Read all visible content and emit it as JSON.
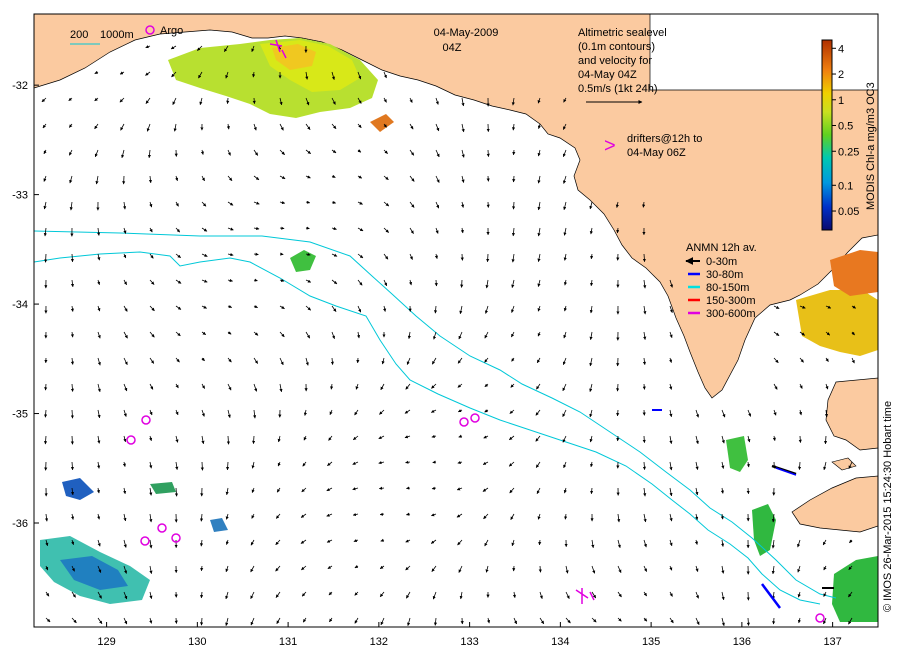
{
  "map": {
    "date_title": "04-May-2009",
    "time_title": "04Z",
    "longitude_ticks": [
      "129",
      "130",
      "131",
      "132",
      "133",
      "134",
      "135",
      "136",
      "137"
    ],
    "latitude_ticks": [
      "-32",
      "-33",
      "-34",
      "-35",
      "-36"
    ],
    "colors": {
      "land": "#fbcaa0",
      "ocean": "#ffffff",
      "isobath": "#00c8d8",
      "argo": "#e000e0",
      "drifter": "#e000e0",
      "arrow": "#000000"
    }
  },
  "scale_legend": {
    "isobath_200": "200",
    "isobath_1000": "1000m",
    "argo_label": "Argo"
  },
  "altimetry_note": {
    "lines": [
      "Altimetric sealevel",
      "(0.1m contours)",
      "and velocity for",
      "04-May 04Z",
      "0.5m/s (1kt 24h)"
    ]
  },
  "drifters_note": {
    "symbol": ">",
    "lines": [
      "drifters@12h to",
      "04-May 06Z"
    ]
  },
  "anmn_legend": {
    "title": "ANMN 12h av.",
    "items": [
      {
        "label": "0-30m",
        "color": "#000000"
      },
      {
        "label": "30-80m",
        "color": "#0000ff"
      },
      {
        "label": "80-150m",
        "color": "#00e0e0"
      },
      {
        "label": "150-300m",
        "color": "#ff0000"
      },
      {
        "label": "300-600m",
        "color": "#e000e0"
      }
    ]
  },
  "colorbar": {
    "title": "MODIS Chl-a mg/m3 OC3",
    "tick_labels": [
      "4",
      "2",
      "1",
      "0.5",
      "0.25",
      "0.1",
      "0.05"
    ],
    "tick_values": [
      4,
      2,
      1,
      0.5,
      0.25,
      0.1,
      0.05
    ],
    "range": [
      0.03,
      5
    ],
    "scale": "log"
  },
  "credit": "© IMOS 26-Mar-2015 15:24:30 Hobart time"
}
